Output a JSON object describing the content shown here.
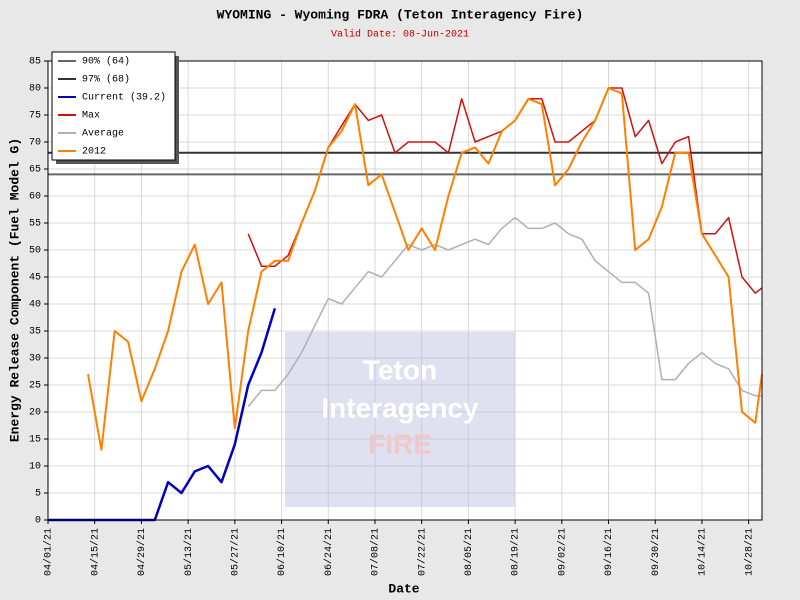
{
  "chart_data": {
    "type": "line",
    "title": "WYOMING - Wyoming FDRA (Teton Interagency Fire)",
    "subtitle": "Valid Date: 08-Jun-2021",
    "x_label": "Date",
    "y_label": "Energy Release Component (Fuel Model G)",
    "watermark": [
      "Teton",
      "Interagency",
      "FIRE"
    ],
    "xlim": [
      "04/01/21",
      "11/01/21"
    ],
    "xticks": [
      "04/01/21",
      "04/15/21",
      "04/29/21",
      "05/13/21",
      "05/27/21",
      "06/10/21",
      "06/24/21",
      "07/08/21",
      "07/22/21",
      "08/05/21",
      "08/19/21",
      "09/02/21",
      "09/16/21",
      "09/30/21",
      "10/14/21",
      "10/28/21"
    ],
    "ylim": [
      0,
      85
    ],
    "yticks": [
      0,
      5,
      10,
      15,
      20,
      25,
      30,
      35,
      40,
      45,
      50,
      55,
      60,
      65,
      70,
      75,
      80,
      85
    ],
    "grid": true,
    "reference_lines": [
      {
        "name": "90% (64)",
        "value": 64,
        "color": "#666666"
      },
      {
        "name": "97% (68)",
        "value": 68,
        "color": "#333333"
      }
    ],
    "x": [
      "04/01/21",
      "04/05/21",
      "04/09/21",
      "04/13/21",
      "04/17/21",
      "04/21/21",
      "04/25/21",
      "04/29/21",
      "05/03/21",
      "05/07/21",
      "05/11/21",
      "05/15/21",
      "05/19/21",
      "05/23/21",
      "05/27/21",
      "05/31/21",
      "06/04/21",
      "06/08/21",
      "06/12/21",
      "06/16/21",
      "06/20/21",
      "06/24/21",
      "06/28/21",
      "07/02/21",
      "07/06/21",
      "07/10/21",
      "07/14/21",
      "07/18/21",
      "07/22/21",
      "07/26/21",
      "07/30/21",
      "08/03/21",
      "08/07/21",
      "08/11/21",
      "08/15/21",
      "08/19/21",
      "08/23/21",
      "08/27/21",
      "08/31/21",
      "09/04/21",
      "09/08/21",
      "09/12/21",
      "09/16/21",
      "09/20/21",
      "09/24/21",
      "09/28/21",
      "10/02/21",
      "10/06/21",
      "10/10/21",
      "10/14/21",
      "10/18/21",
      "10/22/21",
      "10/26/21",
      "10/30/21",
      "11/01/21"
    ],
    "series": [
      {
        "name": "Current (39.2)",
        "color": "#0000c0",
        "width": 2.5,
        "values": [
          0,
          0,
          0,
          0,
          0,
          0,
          0,
          0,
          0,
          7,
          5,
          9,
          10,
          7,
          14,
          25,
          31,
          39.2,
          null,
          null,
          null,
          null,
          null,
          null,
          null,
          null,
          null,
          null,
          null,
          null,
          null,
          null,
          null,
          null,
          null,
          null,
          null,
          null,
          null,
          null,
          null,
          null,
          null,
          null,
          null,
          null,
          null,
          null,
          null,
          null,
          null,
          null,
          null,
          null,
          null
        ]
      },
      {
        "name": "Max",
        "color": "#d01010",
        "width": 1.5,
        "values": [
          null,
          null,
          null,
          null,
          null,
          null,
          null,
          null,
          null,
          null,
          null,
          null,
          null,
          null,
          null,
          53,
          47,
          47,
          49,
          55,
          61,
          69,
          73,
          77,
          74,
          75,
          68,
          70,
          70,
          70,
          68,
          78,
          70,
          71,
          72,
          74,
          78,
          78,
          70,
          70,
          72,
          74,
          80,
          80,
          71,
          74,
          66,
          70,
          71,
          53,
          53,
          56,
          45,
          42,
          43
        ]
      },
      {
        "name": "Average",
        "color": "#b0b0b0",
        "width": 1.5,
        "values": [
          null,
          null,
          null,
          null,
          null,
          null,
          null,
          null,
          null,
          null,
          null,
          null,
          null,
          null,
          null,
          21,
          24,
          24,
          27,
          31,
          36,
          41,
          40,
          43,
          46,
          45,
          48,
          51,
          50,
          51,
          50,
          51,
          52,
          51,
          54,
          56,
          54,
          54,
          55,
          53,
          52,
          48,
          46,
          44,
          44,
          42,
          26,
          26,
          29,
          31,
          29,
          28,
          24,
          23,
          23
        ]
      },
      {
        "name": "2012",
        "color": "#ff8000",
        "width": 2,
        "values": [
          null,
          null,
          null,
          27,
          13,
          35,
          33,
          22,
          28,
          35,
          46,
          51,
          40,
          44,
          17,
          35,
          46,
          48,
          48,
          55,
          61,
          69,
          72,
          77,
          62,
          64,
          57,
          50,
          54,
          50,
          60,
          68,
          69,
          66,
          72,
          74,
          78,
          77,
          62,
          65,
          70,
          74,
          80,
          79,
          50,
          52,
          58,
          68,
          68,
          53,
          49,
          45,
          20,
          18,
          27
        ]
      }
    ]
  }
}
